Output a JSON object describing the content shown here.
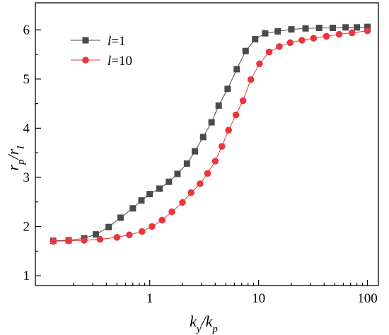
{
  "chart_data": {
    "type": "line",
    "x_scale": "log",
    "xlim": [
      0.1,
      100
    ],
    "ylim": [
      0.8,
      6.55
    ],
    "grid": false,
    "legend_position": "top-left",
    "x_ticks": [
      1,
      10,
      100
    ],
    "x_tick_labels": [
      "1",
      "10",
      "100"
    ],
    "y_ticks": [
      1,
      2,
      3,
      4,
      5,
      6
    ],
    "y_tick_labels": [
      "1",
      "2",
      "3",
      "4",
      "5",
      "6"
    ],
    "xlabel": {
      "main": "k",
      "sub1": "y",
      "mid": "/k",
      "sub2": "p"
    },
    "ylabel": {
      "main": "r",
      "sub1": "p",
      "mid": "/r",
      "sub2": "l"
    },
    "series": [
      {
        "name": "l=1",
        "name_parts": {
          "italic": "l",
          "rest": "=1"
        },
        "color": "#4a4a4a",
        "marker": "square",
        "x": [
          0.13,
          0.18,
          0.25,
          0.32,
          0.42,
          0.54,
          0.7,
          0.84,
          1.0,
          1.23,
          1.5,
          1.8,
          2.2,
          2.6,
          3.1,
          3.7,
          4.3,
          5.2,
          6.3,
          7.6,
          9.3,
          11.5,
          15,
          20,
          27,
          36,
          48,
          63,
          80,
          100
        ],
        "y": [
          1.71,
          1.72,
          1.76,
          1.84,
          1.99,
          2.18,
          2.37,
          2.53,
          2.66,
          2.77,
          2.91,
          3.07,
          3.28,
          3.53,
          3.82,
          4.12,
          4.46,
          4.8,
          5.2,
          5.57,
          5.81,
          5.93,
          5.97,
          6.01,
          6.03,
          6.04,
          6.04,
          6.05,
          6.05,
          6.06
        ]
      },
      {
        "name": "l=10",
        "name_parts": {
          "italic": "l",
          "rest": "=10"
        },
        "color": "#e8373c",
        "marker": "circle",
        "x": [
          0.13,
          0.18,
          0.25,
          0.35,
          0.5,
          0.65,
          0.85,
          1.05,
          1.3,
          1.6,
          2.0,
          2.4,
          2.9,
          3.4,
          4.0,
          4.6,
          5.3,
          6.2,
          7.2,
          8.5,
          10.2,
          12.5,
          15.5,
          19.5,
          25,
          32,
          42,
          55,
          72,
          100
        ],
        "y": [
          1.7,
          1.71,
          1.72,
          1.74,
          1.78,
          1.83,
          1.9,
          2.0,
          2.13,
          2.3,
          2.49,
          2.69,
          2.87,
          3.08,
          3.33,
          3.63,
          3.96,
          4.27,
          4.56,
          4.99,
          5.31,
          5.55,
          5.66,
          5.74,
          5.79,
          5.83,
          5.87,
          5.91,
          5.94,
          5.98
        ]
      }
    ]
  }
}
